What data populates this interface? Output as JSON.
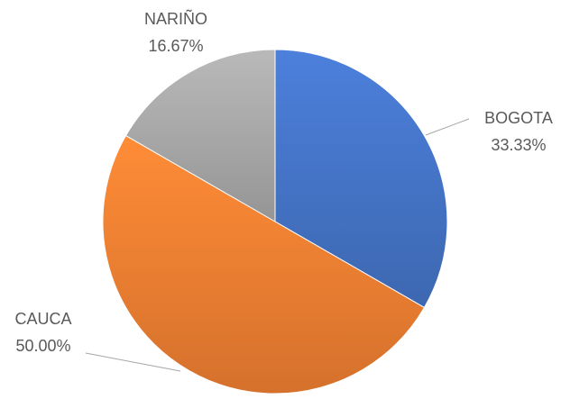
{
  "chart_data": {
    "type": "pie",
    "categories": [
      "BOGOTA",
      "CAUCA",
      "NARIÑO"
    ],
    "values": [
      33.33,
      50.0,
      16.67
    ],
    "value_labels": [
      "33.33%",
      "50.00%",
      "16.67%"
    ],
    "colors": [
      "#4472c4",
      "#ed7d31",
      "#a5a5a5"
    ]
  }
}
